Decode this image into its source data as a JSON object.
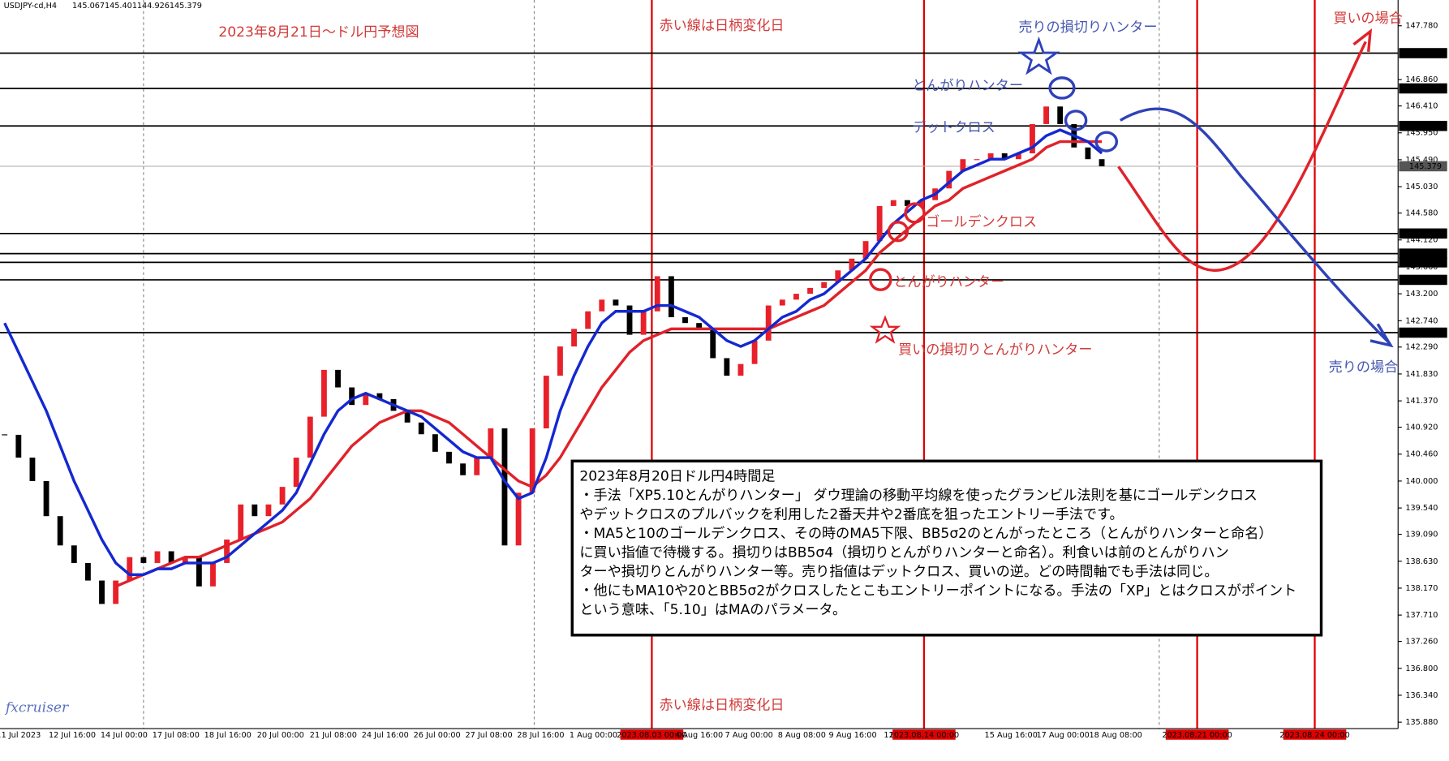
{
  "chart_data": {
    "type": "candlestick",
    "symbol": "USDJPY-cd,H4",
    "ohlc": [
      145.067,
      145.401,
      144.926,
      145.379
    ],
    "watermark": "fxcruiser",
    "ylim": [
      135.77,
      148.22
    ],
    "yticks": [
      {
        "value": 147.78,
        "label": "147.780"
      },
      {
        "value": 146.86,
        "label": "146.860"
      },
      {
        "value": 146.41,
        "label": "146.410"
      },
      {
        "value": 145.95,
        "label": "145.950"
      },
      {
        "value": 145.49,
        "label": "145.490"
      },
      {
        "value": 145.03,
        "label": "145.030"
      },
      {
        "value": 144.58,
        "label": "144.580"
      },
      {
        "value": 144.12,
        "label": "144.120"
      },
      {
        "value": 143.66,
        "label": "143.660"
      },
      {
        "value": 143.2,
        "label": "143.200"
      },
      {
        "value": 142.74,
        "label": "142.740"
      },
      {
        "value": 142.29,
        "label": "142.290"
      },
      {
        "value": 141.83,
        "label": "141.830"
      },
      {
        "value": 141.37,
        "label": "141.370"
      },
      {
        "value": 140.92,
        "label": "140.920"
      },
      {
        "value": 140.46,
        "label": "140.460"
      },
      {
        "value": 140,
        "label": "140.000"
      },
      {
        "value": 139.54,
        "label": "139.540"
      },
      {
        "value": 139.09,
        "label": "139.090"
      },
      {
        "value": 138.63,
        "label": "138.630"
      },
      {
        "value": 138.17,
        "label": "138.170"
      },
      {
        "value": 137.71,
        "label": "137.710"
      },
      {
        "value": 137.26,
        "label": "137.260"
      },
      {
        "value": 136.8,
        "label": "136.800"
      },
      {
        "value": 136.34,
        "label": "136.340"
      },
      {
        "value": 135.88,
        "label": "135.880"
      }
    ],
    "levels": [
      147.312,
      146.709,
      146.068,
      145.379,
      144.23,
      143.886,
      143.737,
      143.438,
      142.536
    ],
    "level_color": "#000000",
    "current_price_color": "#b0b0b0",
    "x_labels": [
      "11 Jul 2023",
      "12 Jul 16:00",
      "14 Jul 00:00",
      "17 Jul 08:00",
      "18 Jul 16:00",
      "20 Jul 00:00",
      "21 Jul 08:00",
      "24 Jul 16:00",
      "26 Jul 00:00",
      "27 Jul 08:00",
      "28 Jul 16:00",
      "1 Aug 00:00",
      "2023.08.03 00:00",
      "4 Aug 16:00",
      "7 Aug 00:00",
      "8 Aug 08:00",
      "9 Aug 16:00",
      "11",
      "2023.08.14 00:00",
      "15 Aug 16:00",
      "17 Aug 00:00",
      "18 Aug 08:00",
      "2023.08.21 00:00",
      "2023.08.24 00:00"
    ],
    "change_date_color": "#e00000",
    "close": [
      140.79,
      140.4,
      140.0,
      139.4,
      138.9,
      138.6,
      138.3,
      137.9,
      138.3,
      138.7,
      138.6,
      138.8,
      138.6,
      138.7,
      138.2,
      138.6,
      139.0,
      139.6,
      139.4,
      139.6,
      139.9,
      140.4,
      141.1,
      141.9,
      141.6,
      141.3,
      141.5,
      141.4,
      141.2,
      141.0,
      140.8,
      140.5,
      140.3,
      140.1,
      140.4,
      140.9,
      138.9,
      139.8,
      140.9,
      141.8,
      142.3,
      142.6,
      142.9,
      143.1,
      143.0,
      142.5,
      142.9,
      143.5,
      142.8,
      142.7,
      142.6,
      142.1,
      141.8,
      142.0,
      142.4,
      143.0,
      143.1,
      143.2,
      143.3,
      143.4,
      143.6,
      143.8,
      144.1,
      144.7,
      144.8,
      144.7,
      144.8,
      145.0,
      145.3,
      145.5,
      145.5,
      145.6,
      145.5,
      145.6,
      146.1,
      146.4,
      146.1,
      145.7,
      145.5,
      145.379
    ],
    "candle_colors": {
      "up": "#e8202a",
      "down": "#000000"
    },
    "ma_fast": {
      "color": "#1428d0",
      "values": [
        142.7,
        142.2,
        141.7,
        141.2,
        140.6,
        140.0,
        139.5,
        139.0,
        138.6,
        138.4,
        138.4,
        138.5,
        138.5,
        138.6,
        138.6,
        138.6,
        138.7,
        138.9,
        139.1,
        139.3,
        139.5,
        139.8,
        140.3,
        140.8,
        141.2,
        141.4,
        141.5,
        141.4,
        141.3,
        141.2,
        141.1,
        140.9,
        140.7,
        140.5,
        140.4,
        140.4,
        140.0,
        139.7,
        139.8,
        140.4,
        141.2,
        141.8,
        142.3,
        142.7,
        142.9,
        142.9,
        142.9,
        143.0,
        143.0,
        142.9,
        142.8,
        142.6,
        142.4,
        142.3,
        142.4,
        142.6,
        142.8,
        142.9,
        143.1,
        143.2,
        143.4,
        143.6,
        143.8,
        144.1,
        144.4,
        144.6,
        144.8,
        144.9,
        145.1,
        145.3,
        145.4,
        145.5,
        145.5,
        145.6,
        145.7,
        145.9,
        146.0,
        145.9,
        145.8,
        145.6
      ]
    },
    "ma_slow": {
      "color": "#e0222a",
      "values": [
        null,
        null,
        null,
        null,
        null,
        null,
        null,
        null,
        138.2,
        138.3,
        138.4,
        138.5,
        138.6,
        138.7,
        138.7,
        138.8,
        138.9,
        139.0,
        139.1,
        139.2,
        139.3,
        139.5,
        139.7,
        140.0,
        140.3,
        140.6,
        140.8,
        141.0,
        141.1,
        141.2,
        141.2,
        141.1,
        141.0,
        140.8,
        140.6,
        140.4,
        140.2,
        140.0,
        139.9,
        140.1,
        140.4,
        140.8,
        141.2,
        141.6,
        141.9,
        142.2,
        142.4,
        142.5,
        142.6,
        142.6,
        142.6,
        142.6,
        142.6,
        142.6,
        142.6,
        142.6,
        142.7,
        142.8,
        142.9,
        143.0,
        143.2,
        143.4,
        143.6,
        143.9,
        144.1,
        144.3,
        144.5,
        144.7,
        144.8,
        145.0,
        145.1,
        145.2,
        145.3,
        145.4,
        145.5,
        145.7,
        145.8,
        145.8,
        145.8,
        145.8
      ]
    },
    "annotations": [
      "2023年8月21日〜ドル円予想図",
      "赤い線は日柄変化日",
      "赤い線は日柄変化日",
      "売りの損切りハンター",
      "とんがりハンター",
      "デットクロス",
      "ゴールデンクロス",
      "とんがりハンター",
      "買いの損切りとんがりハンター",
      "買いの場合",
      "売りの場合"
    ],
    "note_lines": [
      "2023年8月20日ドル円4時間足",
      "・手法「XP5.10とんがりハンター」 ダウ理論の移動平均線を使ったグランビル法則を基にゴールデンクロス",
      "やデットクロスのプルバックを利用した2番天井や2番底を狙ったエントリー手法です。",
      "・MA5と10のゴールデンクロス、その時のMA5下限、BB5σ2のとんがったところ（とんがりハンターと命名）",
      "に買い指値で待機する。損切りはBB5σ4（損切りとんがりハンターと命名）。利食いは前のとんがりハン",
      "ターや損切りとんがりハンター等。売り指値はデットクロス、買いの逆。どの時間軸でも手法は同じ。",
      "・他にもMA10や20とBB5σ2がクロスしたとこもエントリーポイントになる。手法の「XP」とはクロスがポイント",
      "という意味、「5.10」はMAのパラメータ。"
    ]
  }
}
